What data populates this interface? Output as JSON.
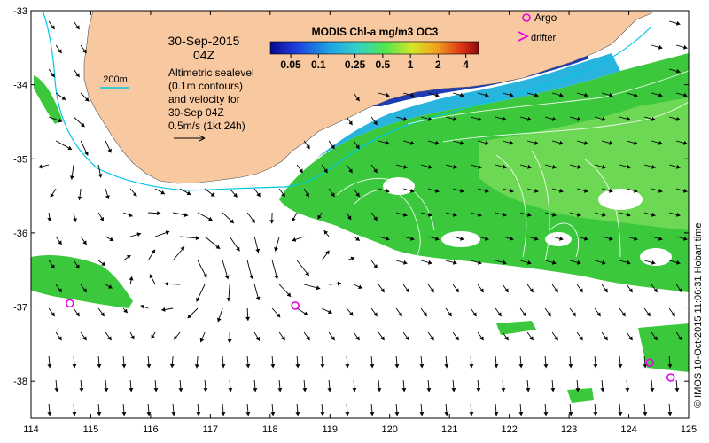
{
  "date_line": "30-Sep-2015",
  "time_line": "04Z",
  "colorbar": {
    "title": "MODIS Chl-a mg/m3 OC3",
    "tick_labels": [
      "0.05",
      "0.1",
      "0.25",
      "0.5",
      "1",
      "2",
      "4"
    ],
    "tick_values": [
      0.05,
      0.1,
      0.25,
      0.5,
      1,
      2,
      4
    ],
    "range": [
      0.03,
      5.5
    ],
    "scale": "log"
  },
  "bathymetry_label": "200m",
  "sealevel_note": [
    "Altimetric sealevel",
    "(0.1m contours)",
    "and velocity for",
    "30-Sep 04Z"
  ],
  "scale_note": "0.5m/s (1kt 24h)",
  "legend": {
    "argo_label": "Argo",
    "drifter_label": "drifter"
  },
  "credit": "© IMOS 10-Oct-2015 11:06:31 Hobart time",
  "axes": {
    "x_ticks": [
      "114",
      "115",
      "116",
      "117",
      "118",
      "119",
      "120",
      "121",
      "122",
      "123",
      "124",
      "125"
    ],
    "y_ticks": [
      "-33",
      "-34",
      "-35",
      "-36",
      "-37",
      "-38"
    ],
    "lon_range": [
      114,
      125
    ],
    "lat_range": [
      -38.5,
      -33
    ]
  },
  "argo_floats": [
    {
      "lon": 114.65,
      "lat": -36.95
    },
    {
      "lon": 118.42,
      "lat": -36.98
    },
    {
      "lon": 124.35,
      "lat": -37.75
    },
    {
      "lon": 124.7,
      "lat": -37.95
    }
  ],
  "colors": {
    "land": "#f8c8a0",
    "chl_green": "#3cc83c",
    "chl_light_green": "#78dc5a",
    "chl_cyan": "#28b4dc",
    "chl_blue": "#1e3cb4",
    "argo": "#e600e6",
    "isobath": "#00c8e6"
  }
}
